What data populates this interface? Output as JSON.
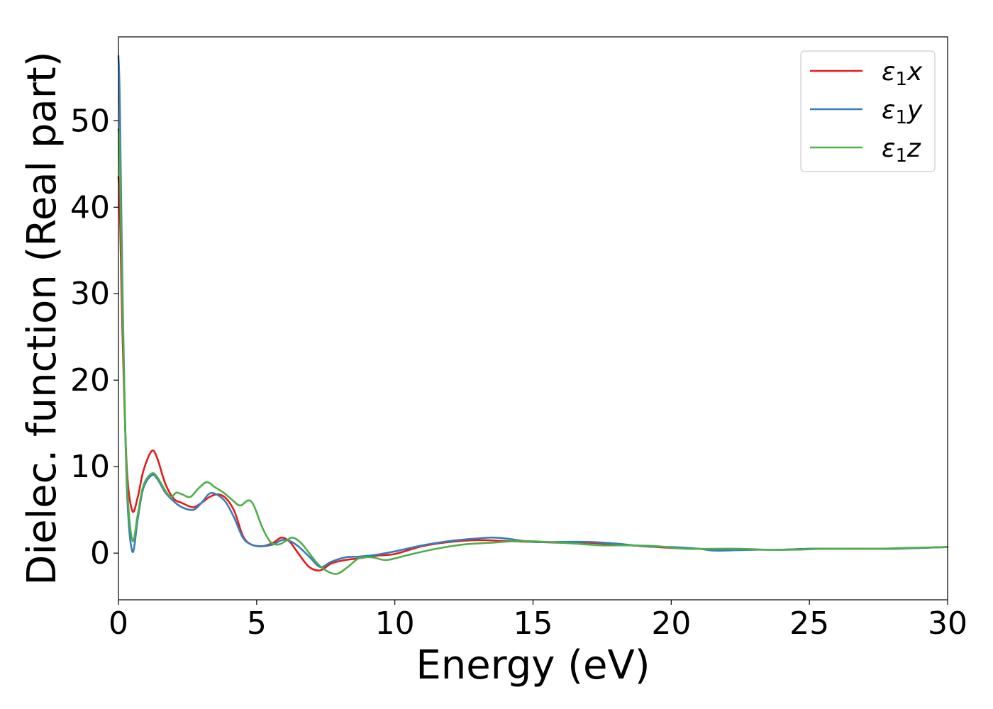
{
  "chart_data": {
    "type": "line",
    "xlabel": "Energy (eV)",
    "ylabel": "Dielec. function (Real part)",
    "xlim": [
      0,
      30
    ],
    "ylim": [
      -5.4,
      59.7
    ],
    "xticks": [
      0,
      5,
      10,
      15,
      20,
      25,
      30
    ],
    "yticks": [
      0,
      10,
      20,
      30,
      40,
      50
    ],
    "grid": false,
    "legend_position": "top-right",
    "series": [
      {
        "name": "ε1x",
        "legend_base": "ε",
        "legend_sub": "1",
        "legend_var": "x",
        "color": "#e41a1c",
        "x": [
          0.0,
          0.05,
          0.15,
          0.3,
          0.5,
          0.7,
          0.9,
          1.2,
          1.4,
          1.7,
          2.0,
          2.3,
          2.7,
          3.0,
          3.3,
          3.6,
          3.9,
          4.2,
          4.5,
          4.8,
          5.2,
          5.6,
          5.9,
          6.2,
          6.5,
          6.9,
          7.3,
          7.7,
          8.2,
          8.7,
          9.3,
          10.0,
          11.0,
          12.0,
          13.0,
          14.0,
          15.0,
          16.0,
          17.0,
          18.0,
          19.0,
          20.0,
          21.0,
          22.0,
          23.0,
          24.0,
          25.0,
          26.0,
          27.0,
          28.0,
          29.0,
          30.0
        ],
        "values": [
          43.5,
          40.0,
          25.0,
          10.0,
          4.9,
          6.5,
          9.5,
          11.8,
          11.0,
          8.0,
          6.3,
          5.8,
          5.3,
          5.8,
          6.5,
          6.8,
          6.3,
          4.8,
          2.0,
          1.0,
          0.8,
          1.2,
          1.8,
          1.3,
          0.0,
          -1.6,
          -2.0,
          -1.2,
          -0.8,
          -0.6,
          -0.3,
          -0.1,
          0.8,
          1.3,
          1.5,
          1.4,
          1.3,
          1.2,
          1.2,
          1.0,
          0.8,
          0.6,
          0.5,
          0.4,
          0.4,
          0.4,
          0.5,
          0.5,
          0.5,
          0.5,
          0.6,
          0.7
        ]
      },
      {
        "name": "ε1y",
        "legend_base": "ε",
        "legend_sub": "1",
        "legend_var": "y",
        "color": "#377eb8",
        "x": [
          0.0,
          0.05,
          0.15,
          0.3,
          0.5,
          0.7,
          0.9,
          1.2,
          1.4,
          1.7,
          2.0,
          2.3,
          2.7,
          3.0,
          3.3,
          3.6,
          3.9,
          4.2,
          4.5,
          4.8,
          5.2,
          5.6,
          5.9,
          6.2,
          6.5,
          6.9,
          7.3,
          7.7,
          8.2,
          8.7,
          9.3,
          10.0,
          11.0,
          12.0,
          13.0,
          13.5,
          14.0,
          15.0,
          16.0,
          17.0,
          18.0,
          19.0,
          20.0,
          21.0,
          21.5,
          22.0,
          23.0,
          24.0,
          25.0,
          26.0,
          27.0,
          28.0,
          29.0,
          30.0
        ],
        "values": [
          57.5,
          52.0,
          30.0,
          8.0,
          0.2,
          4.0,
          7.5,
          9.0,
          8.6,
          7.0,
          6.0,
          5.3,
          5.0,
          5.8,
          6.9,
          6.7,
          5.8,
          4.0,
          1.8,
          1.0,
          0.8,
          1.0,
          1.5,
          1.4,
          0.8,
          -0.4,
          -1.6,
          -1.0,
          -0.5,
          -0.4,
          -0.2,
          0.2,
          0.9,
          1.4,
          1.7,
          1.8,
          1.7,
          1.3,
          1.3,
          1.3,
          1.1,
          0.8,
          0.7,
          0.5,
          0.3,
          0.3,
          0.4,
          0.4,
          0.5,
          0.5,
          0.5,
          0.5,
          0.6,
          0.7
        ]
      },
      {
        "name": "ε1z",
        "legend_base": "ε",
        "legend_sub": "1",
        "legend_var": "z",
        "color": "#4daf4a",
        "x": [
          0.0,
          0.05,
          0.15,
          0.3,
          0.5,
          0.7,
          0.9,
          1.2,
          1.4,
          1.7,
          1.9,
          2.1,
          2.3,
          2.6,
          2.9,
          3.2,
          3.5,
          3.8,
          4.1,
          4.4,
          4.7,
          4.9,
          5.2,
          5.5,
          5.8,
          6.1,
          6.3,
          6.6,
          6.9,
          7.2,
          7.5,
          7.9,
          8.3,
          8.7,
          9.2,
          9.7,
          10.5,
          11.5,
          12.5,
          13.5,
          14.5,
          15.5,
          16.5,
          17.5,
          18.5,
          19.5,
          20.5,
          21.5,
          22.5,
          23.5,
          24.5,
          25.5,
          26.5,
          27.5,
          28.5,
          30.0
        ],
        "values": [
          49.0,
          46.0,
          28.0,
          9.0,
          1.5,
          4.5,
          7.8,
          9.2,
          8.8,
          7.2,
          6.5,
          7.0,
          6.8,
          6.5,
          7.5,
          8.2,
          7.6,
          7.0,
          6.2,
          5.5,
          6.1,
          5.5,
          3.0,
          1.3,
          1.0,
          1.5,
          1.8,
          1.2,
          0.0,
          -1.2,
          -2.0,
          -2.4,
          -1.6,
          -0.6,
          -0.5,
          -0.8,
          -0.2,
          0.5,
          1.0,
          1.2,
          1.4,
          1.3,
          1.1,
          0.9,
          0.9,
          0.8,
          0.5,
          0.5,
          0.5,
          0.4,
          0.4,
          0.5,
          0.5,
          0.5,
          0.6,
          0.7
        ]
      }
    ]
  }
}
